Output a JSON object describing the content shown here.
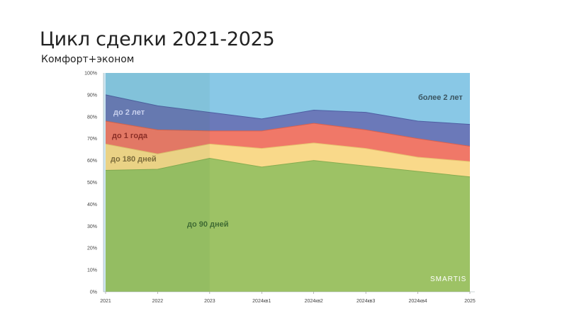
{
  "header": {
    "title": "Цикл сделки 2021-2025",
    "subtitle": "Комфорт+эконом"
  },
  "watermark": "SMARTIS",
  "colors": {
    "band_90": "#9dc265",
    "band_180": "#f9d98a",
    "band_1y": "#f07868",
    "band_2y": "#6b79b9",
    "band_more": "#89c8e6",
    "highlight": "#2d7a46"
  },
  "chart_data": {
    "type": "area",
    "stacked": true,
    "x": [
      "2021",
      "2022",
      "2023",
      "2024кв1",
      "2024кв2",
      "2024кв3",
      "2024кв4",
      "2025"
    ],
    "ylim": [
      0,
      100
    ],
    "yticks": [
      "0%",
      "10%",
      "20%",
      "30%",
      "40%",
      "50%",
      "60%",
      "70%",
      "80%",
      "90%",
      "100%"
    ],
    "series": [
      {
        "name": "до 90 дней",
        "values": [
          55.5,
          56,
          61,
          57,
          60,
          57.5,
          55,
          52.5
        ]
      },
      {
        "name": "до 180 дней",
        "values": [
          12,
          7,
          6.5,
          8.5,
          8,
          8,
          6.5,
          7
        ]
      },
      {
        "name": "до 1 года",
        "values": [
          10.5,
          11,
          6,
          8,
          9,
          8.5,
          8.5,
          7
        ]
      },
      {
        "name": "до 2 лет",
        "values": [
          12,
          11,
          8.5,
          5.5,
          6,
          8,
          8,
          10
        ]
      },
      {
        "name": "более 2 лет",
        "values": [
          10,
          15,
          18,
          21,
          17,
          18,
          22,
          23.5
        ]
      }
    ],
    "highlight_span": [
      "2021",
      "2023"
    ]
  }
}
